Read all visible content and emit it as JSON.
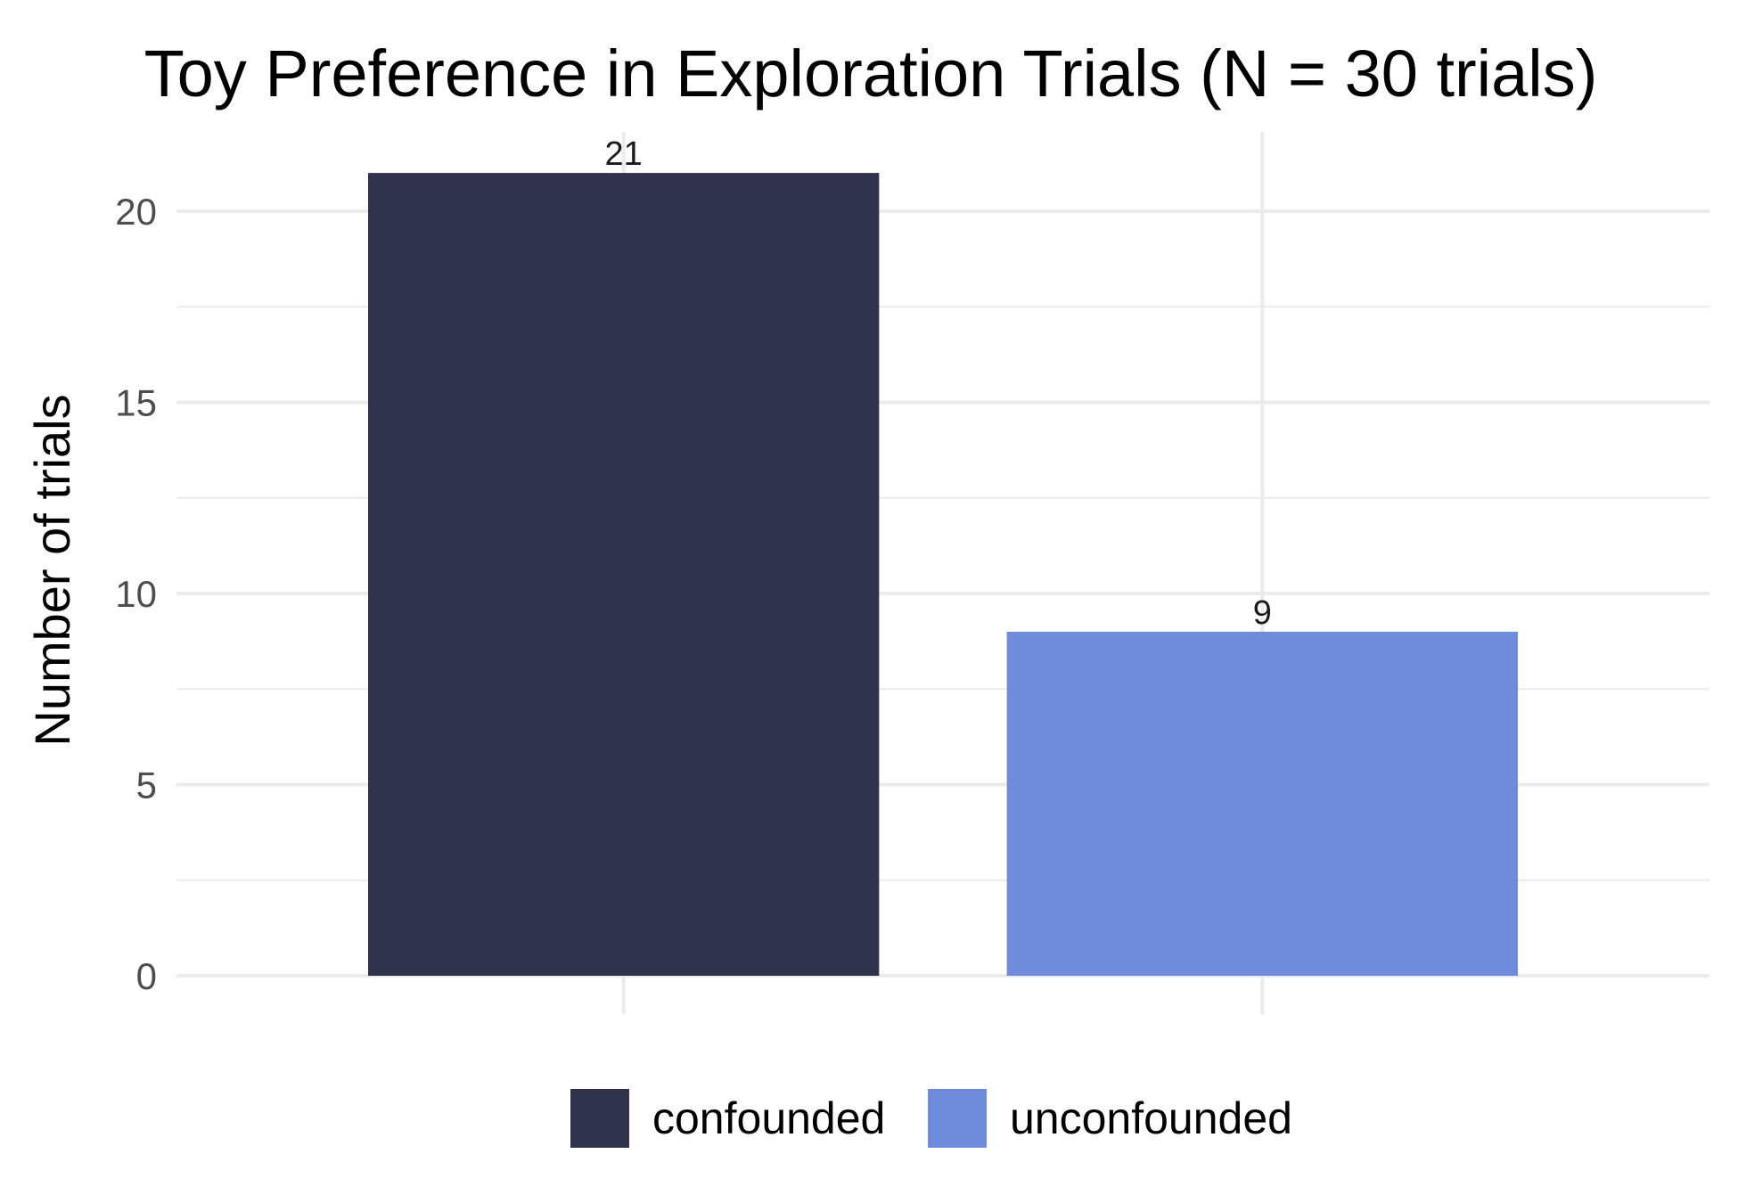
{
  "chart_data": {
    "type": "bar",
    "title": "Toy Preference in Exploration Trials (N = 30 trials)",
    "xlabel": "",
    "ylabel": "Number of trials",
    "categories": [
      "confounded",
      "unconfounded"
    ],
    "values": [
      21,
      9
    ],
    "data_labels": [
      "21",
      "9"
    ],
    "colors": [
      "#2f334d",
      "#6f8bdb"
    ],
    "ylim": [
      0,
      22
    ],
    "y_ticks": [
      0,
      5,
      10,
      15,
      20
    ],
    "y_tick_labels": [
      "0",
      "5",
      "10",
      "15",
      "20"
    ],
    "x_tick_labels_shown": false,
    "grid": true,
    "grid_color": "#ebebeb",
    "legend": {
      "position": "bottom",
      "entries": [
        "confounded",
        "unconfounded"
      ]
    }
  }
}
